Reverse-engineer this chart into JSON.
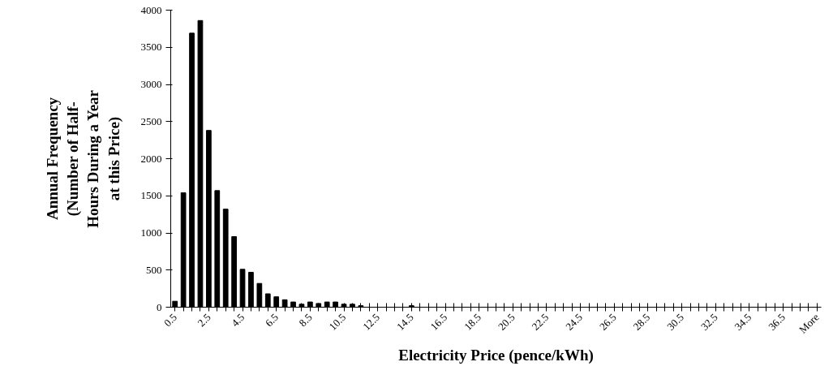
{
  "chart_data": {
    "type": "bar",
    "xlabel": "Electricity Price (pence/kWh)",
    "ylabel": "Annual Frequency\n(Number of Half-\nHours During a Year\nat this Price)",
    "categories": [
      "0.5",
      null,
      null,
      null,
      "2.5",
      null,
      null,
      null,
      "4.5",
      null,
      null,
      null,
      "6.5",
      null,
      null,
      null,
      "8.5",
      null,
      null,
      null,
      "10.5",
      null,
      null,
      null,
      "12.5",
      null,
      null,
      null,
      "14.5",
      null,
      null,
      null,
      "16.5",
      null,
      null,
      null,
      "18.5",
      null,
      null,
      null,
      "20.5",
      null,
      null,
      null,
      "22.5",
      null,
      null,
      null,
      "24.5",
      null,
      null,
      null,
      "26.5",
      null,
      null,
      null,
      "28.5",
      null,
      null,
      null,
      "30.5",
      null,
      null,
      null,
      "32.5",
      null,
      null,
      null,
      "34.5",
      null,
      null,
      null,
      "36.5",
      null,
      null,
      null,
      "More"
    ],
    "values": [
      80,
      1540,
      3690,
      3860,
      2380,
      1570,
      1320,
      950,
      510,
      470,
      320,
      180,
      140,
      100,
      70,
      40,
      70,
      50,
      70,
      70,
      40,
      40,
      20,
      0,
      0,
      0,
      0,
      0,
      20,
      0,
      0,
      0,
      0,
      0,
      0,
      0,
      0,
      0,
      0,
      0,
      0,
      0,
      0,
      0,
      0,
      0,
      0,
      0,
      0,
      0,
      0,
      0,
      0,
      0,
      0,
      0,
      0,
      0,
      0,
      0,
      0,
      0,
      0,
      0,
      0,
      0,
      0,
      0,
      0,
      0,
      0,
      0,
      0,
      0,
      0,
      0,
      0
    ],
    "color": "#000000",
    "ylim": [
      0,
      4000
    ],
    "yticks": [
      0,
      500,
      1000,
      1500,
      2000,
      2500,
      3000,
      3500,
      4000
    ],
    "grid": false
  }
}
